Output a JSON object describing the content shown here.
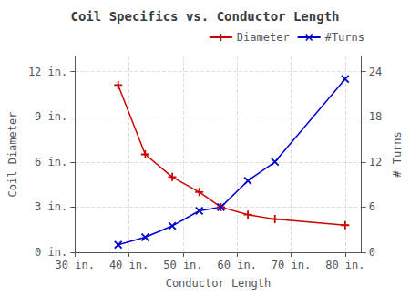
{
  "chart_data": {
    "type": "line",
    "title": "Coil Specifics vs. Conductor Length",
    "xlabel": "Conductor Length",
    "ylabel": "Coil Diameter",
    "y2label": "# Turns",
    "x": [
      38,
      43,
      48,
      53,
      57,
      62,
      67,
      80
    ],
    "series": [
      {
        "name": "Diameter",
        "color": "#cc0000",
        "marker": "+",
        "values": [
          11.1,
          6.5,
          5.0,
          4.0,
          3.0,
          2.5,
          2.2,
          1.8
        ]
      },
      {
        "name": "#Turns",
        "color": "#0000cc",
        "marker": "x",
        "axis": "y2",
        "values": [
          1.0,
          2.0,
          3.5,
          5.5,
          6.0,
          9.5,
          12.0,
          23.0
        ]
      }
    ],
    "xlim": [
      30,
      83
    ],
    "xticks": [
      {
        "value": 30,
        "label": "30 in."
      },
      {
        "value": 40,
        "label": "40 in."
      },
      {
        "value": 50,
        "label": "50 in."
      },
      {
        "value": 60,
        "label": "60 in."
      },
      {
        "value": 70,
        "label": "70 in."
      },
      {
        "value": 80,
        "label": "80 in."
      }
    ],
    "ylim": [
      0,
      13
    ],
    "yticks": [
      {
        "value": 0,
        "label": "0 in."
      },
      {
        "value": 3,
        "label": "3 in."
      },
      {
        "value": 6,
        "label": "6 in."
      },
      {
        "value": 9,
        "label": "9 in."
      },
      {
        "value": 12,
        "label": "12 in."
      }
    ],
    "y2lim": [
      0,
      26
    ],
    "y2ticks": [
      0,
      6,
      12,
      18,
      24
    ],
    "grid": true,
    "legend": "upper right"
  }
}
